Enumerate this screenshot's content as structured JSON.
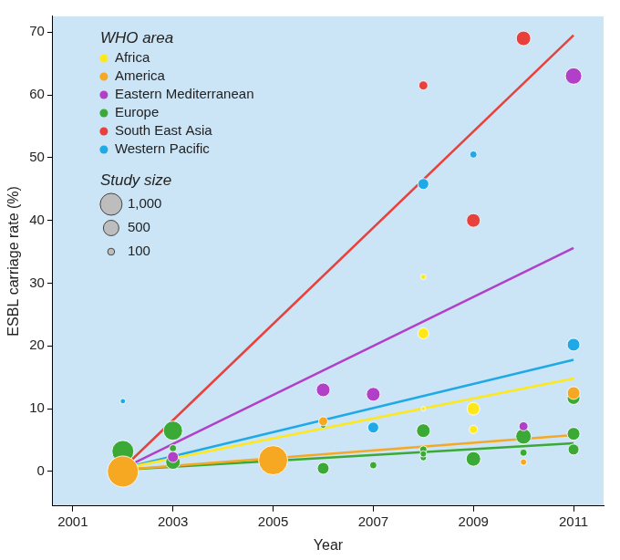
{
  "chart_data": {
    "type": "bubble",
    "x_label": "Year",
    "y_label": "ESBL carriage rate (%)",
    "legend": "top-left",
    "legend_title": "WHO area",
    "size_legend": {
      "title": "Study size",
      "values": [
        1000,
        500,
        100
      ],
      "labels": [
        "1,000",
        "500",
        "100"
      ]
    },
    "xlim": [
      2000.6,
      2011.6
    ],
    "xticks": [
      2001,
      2003,
      2005,
      2007,
      2009,
      2011
    ],
    "ylim": [
      -5.5,
      72.5
    ],
    "yticks": [
      0,
      10,
      20,
      30,
      40,
      50,
      60,
      70
    ],
    "grid": false,
    "series": [
      {
        "name": "Africa",
        "color": "#ffe81a",
        "x": [
          2008,
          2008,
          2008,
          2009,
          2009
        ],
        "values": [
          31,
          22,
          10,
          10,
          6.7
        ],
        "study_size": [
          60,
          250,
          40,
          340,
          140
        ],
        "trend_line": {
          "x": [
            2002,
            2011
          ],
          "values": [
            0.5,
            14.8
          ]
        }
      },
      {
        "name": "America",
        "color": "#f7a823",
        "x": [
          2002,
          2005,
          2006,
          2010,
          2011
        ],
        "values": [
          0,
          1.8,
          8,
          1.5,
          12.5
        ],
        "study_size": [
          2000,
          1780,
          170,
          85,
          340
        ],
        "trend_line": {
          "x": [
            2002,
            2011
          ],
          "values": [
            0.3,
            5.8
          ]
        }
      },
      {
        "name": "Eastern Mediterranean",
        "color": "#b23fc8",
        "x": [
          2003,
          2006,
          2007,
          2010,
          2011
        ],
        "values": [
          2.3,
          13,
          12.3,
          7.2,
          63
        ],
        "study_size": [
          250,
          390,
          390,
          170,
          560
        ],
        "trend_line": {
          "x": [
            2002,
            2011
          ],
          "values": [
            0.5,
            35.6
          ]
        }
      },
      {
        "name": "Europe",
        "color": "#3aa935",
        "x": [
          2002,
          2003,
          2003,
          2003,
          2006,
          2006,
          2007,
          2008,
          2008,
          2008,
          2008,
          2009,
          2010,
          2010,
          2011,
          2011,
          2011
        ],
        "values": [
          3.2,
          6.5,
          3.7,
          1.5,
          0.5,
          7.3,
          1,
          6.5,
          3.5,
          2.2,
          2.8,
          2,
          5.6,
          3,
          11.7,
          6,
          3.5
        ],
        "study_size": [
          1000,
          770,
          110,
          440,
          290,
          60,
          110,
          390,
          110,
          85,
          85,
          440,
          500,
          110,
          340,
          340,
          250
        ],
        "trend_line": {
          "x": [
            2002,
            2011
          ],
          "values": [
            0.3,
            4.5
          ]
        }
      },
      {
        "name": "South East Asia",
        "color": "#e8413c",
        "x": [
          2002,
          2008,
          2009,
          2010
        ],
        "values": [
          0.5,
          61.5,
          40,
          69
        ],
        "study_size": [
          700,
          170,
          390,
          440
        ],
        "trend_line": {
          "x": [
            2002,
            2011
          ],
          "values": [
            0.5,
            69.5
          ]
        }
      },
      {
        "name": "Western Pacific",
        "color": "#1fa9e6",
        "x": [
          2002,
          2007,
          2008,
          2009,
          2010,
          2011
        ],
        "values": [
          11.2,
          7,
          45.8,
          50.5,
          6.3,
          20.2
        ],
        "study_size": [
          60,
          250,
          250,
          110,
          210,
          340
        ],
        "trend_line": {
          "x": [
            2002,
            2011
          ],
          "values": [
            0.5,
            17.8
          ]
        }
      }
    ]
  }
}
